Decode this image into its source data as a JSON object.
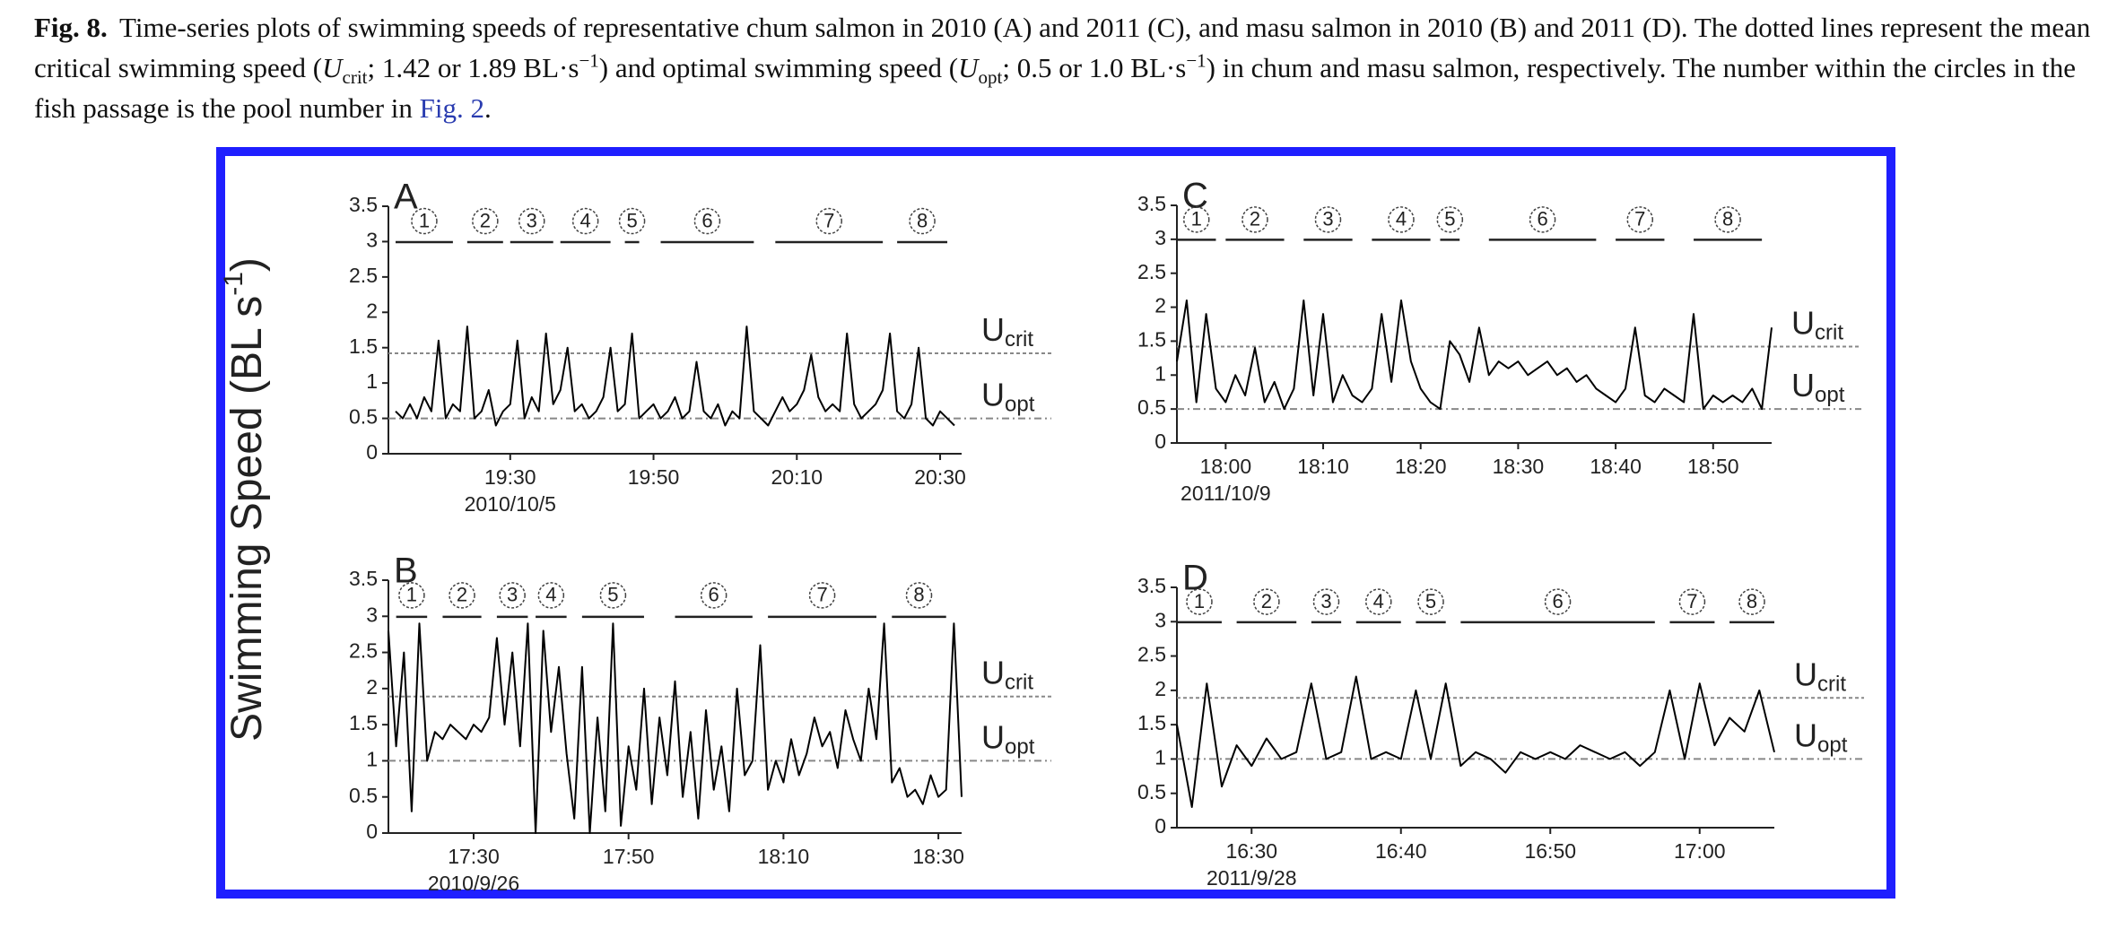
{
  "caption": {
    "label": "Fig. 8.",
    "parts": [
      "Time-series plots of swimming speeds of representative chum salmon in 2010 (A) and 2011 (C), and masu salmon in 2010 (B) and 2011 (D). The dotted lines represent the mean critical swimming speed (",
      "U",
      "crit",
      "; 1.42 or 1.89 BL·s",
      "−1",
      ") and optimal swimming speed (",
      "U",
      "opt",
      "; 0.5 or 1.0 BL·s",
      "−1",
      ") in chum and masu salmon, respectively. The number within the circles in the fish passage is the pool number in ",
      "Fig. 2",
      "."
    ]
  },
  "y_label": [
    "Swimming Speed (BL s",
    "-1",
    ")"
  ],
  "chart_data": [
    {
      "type": "line",
      "panel": "A",
      "date": "2010/10/5",
      "color": "#000000",
      "xlim": [
        "19:13",
        "20:33"
      ],
      "xticks": [
        "19:30",
        "19:50",
        "20:10",
        "20:30"
      ],
      "ylim": [
        0,
        3.5
      ],
      "yticks": [
        0,
        0.5,
        1,
        1.5,
        2,
        2.5,
        3,
        3.5
      ],
      "x": [
        "19:14",
        "19:15",
        "19:16",
        "19:17",
        "19:18",
        "19:19",
        "19:20",
        "19:21",
        "19:22",
        "19:23",
        "19:24",
        "19:25",
        "19:26",
        "19:27",
        "19:28",
        "19:29",
        "19:30",
        "19:31",
        "19:32",
        "19:33",
        "19:34",
        "19:35",
        "19:36",
        "19:37",
        "19:38",
        "19:39",
        "19:40",
        "19:41",
        "19:42",
        "19:43",
        "19:44",
        "19:45",
        "19:46",
        "19:47",
        "19:48",
        "19:49",
        "19:50",
        "19:51",
        "19:52",
        "19:53",
        "19:54",
        "19:55",
        "19:56",
        "19:57",
        "19:58",
        "19:59",
        "20:00",
        "20:01",
        "20:02",
        "20:03",
        "20:04",
        "20:05",
        "20:06",
        "20:07",
        "20:08",
        "20:09",
        "20:10",
        "20:11",
        "20:12",
        "20:13",
        "20:14",
        "20:15",
        "20:16",
        "20:17",
        "20:18",
        "20:19",
        "20:20",
        "20:21",
        "20:22",
        "20:23",
        "20:24",
        "20:25",
        "20:26",
        "20:27",
        "20:28",
        "20:29",
        "20:30",
        "20:31",
        "20:32"
      ],
      "values": [
        0.6,
        0.5,
        0.7,
        0.5,
        0.8,
        0.6,
        1.6,
        0.5,
        0.7,
        0.6,
        1.8,
        0.5,
        0.6,
        0.9,
        0.4,
        0.6,
        0.7,
        1.6,
        0.5,
        0.8,
        0.6,
        1.7,
        0.7,
        0.9,
        1.5,
        0.6,
        0.7,
        0.5,
        0.6,
        0.8,
        1.5,
        0.6,
        0.7,
        1.7,
        0.5,
        0.6,
        0.7,
        0.5,
        0.6,
        0.8,
        0.5,
        0.6,
        1.3,
        0.6,
        0.5,
        0.7,
        0.4,
        0.6,
        0.5,
        1.8,
        0.6,
        0.5,
        0.4,
        0.6,
        0.8,
        0.6,
        0.7,
        0.9,
        1.4,
        0.8,
        0.6,
        0.7,
        0.6,
        1.7,
        0.7,
        0.5,
        0.6,
        0.7,
        0.9,
        1.7,
        0.6,
        0.5,
        0.7,
        1.5,
        0.5,
        0.4,
        0.6,
        0.5,
        0.4
      ],
      "reference_lines": [
        {
          "symbol": "U",
          "subscript": "crit",
          "value": 1.42
        },
        {
          "symbol": "U",
          "subscript": "opt",
          "value": 0.5
        }
      ],
      "pools": [
        {
          "label": "1",
          "start": "19:14",
          "end": "19:22"
        },
        {
          "label": "2",
          "start": "19:24",
          "end": "19:29"
        },
        {
          "label": "3",
          "start": "19:30",
          "end": "19:36"
        },
        {
          "label": "4",
          "start": "19:37",
          "end": "19:44"
        },
        {
          "label": "5",
          "start": "19:46",
          "end": "19:48"
        },
        {
          "label": "6",
          "start": "19:51",
          "end": "20:04"
        },
        {
          "label": "7",
          "start": "20:07",
          "end": "20:22"
        },
        {
          "label": "8",
          "start": "20:24",
          "end": "20:31"
        }
      ]
    },
    {
      "type": "line",
      "panel": "B",
      "date": "2010/9/26",
      "color": "#000000",
      "xlim": [
        "17:19",
        "18:33"
      ],
      "xticks": [
        "17:30",
        "17:50",
        "18:10",
        "18:30"
      ],
      "ylim": [
        0,
        3.5
      ],
      "yticks": [
        0,
        0.5,
        1,
        1.5,
        2,
        2.5,
        3,
        3.5
      ],
      "x": [
        "17:19",
        "17:20",
        "17:21",
        "17:22",
        "17:23",
        "17:24",
        "17:25",
        "17:26",
        "17:27",
        "17:28",
        "17:29",
        "17:30",
        "17:31",
        "17:32",
        "17:33",
        "17:34",
        "17:35",
        "17:36",
        "17:37",
        "17:38",
        "17:39",
        "17:40",
        "17:41",
        "17:42",
        "17:43",
        "17:44",
        "17:45",
        "17:46",
        "17:47",
        "17:48",
        "17:49",
        "17:50",
        "17:51",
        "17:52",
        "17:53",
        "17:54",
        "17:55",
        "17:56",
        "17:57",
        "17:58",
        "17:59",
        "18:00",
        "18:01",
        "18:02",
        "18:03",
        "18:04",
        "18:05",
        "18:06",
        "18:07",
        "18:08",
        "18:09",
        "18:10",
        "18:11",
        "18:12",
        "18:13",
        "18:14",
        "18:15",
        "18:16",
        "18:17",
        "18:18",
        "18:19",
        "18:20",
        "18:21",
        "18:22",
        "18:23",
        "18:24",
        "18:25",
        "18:26",
        "18:27",
        "18:28",
        "18:29",
        "18:30",
        "18:31",
        "18:32",
        "18:33"
      ],
      "values": [
        2.8,
        1.2,
        2.5,
        0.3,
        2.9,
        1.0,
        1.4,
        1.3,
        1.5,
        1.4,
        1.3,
        1.5,
        1.4,
        1.6,
        2.7,
        1.5,
        2.5,
        1.2,
        2.9,
        0.0,
        2.8,
        1.4,
        2.3,
        1.1,
        0.2,
        2.3,
        0.0,
        1.6,
        0.3,
        2.9,
        0.1,
        1.2,
        0.6,
        2.0,
        0.4,
        1.6,
        0.8,
        2.1,
        0.5,
        1.4,
        0.2,
        1.7,
        0.6,
        1.2,
        0.3,
        2.0,
        0.8,
        1.0,
        2.6,
        0.6,
        1.0,
        0.7,
        1.3,
        0.8,
        1.1,
        1.6,
        1.2,
        1.4,
        0.9,
        1.7,
        1.3,
        1.0,
        2.0,
        1.3,
        2.9,
        0.7,
        0.9,
        0.5,
        0.6,
        0.4,
        0.8,
        0.5,
        0.6,
        2.9,
        0.5
      ],
      "reference_lines": [
        {
          "symbol": "U",
          "subscript": "crit",
          "value": 1.89
        },
        {
          "symbol": "U",
          "subscript": "opt",
          "value": 1.0
        }
      ],
      "pools": [
        {
          "label": "1",
          "start": "17:20",
          "end": "17:24"
        },
        {
          "label": "2",
          "start": "17:26",
          "end": "17:31"
        },
        {
          "label": "3",
          "start": "17:33",
          "end": "17:37"
        },
        {
          "label": "4",
          "start": "17:38",
          "end": "17:42"
        },
        {
          "label": "5",
          "start": "17:44",
          "end": "17:52"
        },
        {
          "label": "6",
          "start": "17:56",
          "end": "18:06"
        },
        {
          "label": "7",
          "start": "18:08",
          "end": "18:22"
        },
        {
          "label": "8",
          "start": "18:24",
          "end": "18:31"
        }
      ]
    },
    {
      "type": "line",
      "panel": "C",
      "date": "2011/10/9",
      "color": "#000000",
      "xlim": [
        "17:55",
        "18:56"
      ],
      "xticks": [
        "18:00",
        "18:10",
        "18:20",
        "18:30",
        "18:40",
        "18:50"
      ],
      "ylim": [
        0,
        3.5
      ],
      "yticks": [
        0,
        0.5,
        1,
        1.5,
        2,
        2.5,
        3,
        3.5
      ],
      "x": [
        "17:55",
        "17:56",
        "17:57",
        "17:58",
        "17:59",
        "18:00",
        "18:01",
        "18:02",
        "18:03",
        "18:04",
        "18:05",
        "18:06",
        "18:07",
        "18:08",
        "18:09",
        "18:10",
        "18:11",
        "18:12",
        "18:13",
        "18:14",
        "18:15",
        "18:16",
        "18:17",
        "18:18",
        "18:19",
        "18:20",
        "18:21",
        "18:22",
        "18:23",
        "18:24",
        "18:25",
        "18:26",
        "18:27",
        "18:28",
        "18:29",
        "18:30",
        "18:31",
        "18:32",
        "18:33",
        "18:34",
        "18:35",
        "18:36",
        "18:37",
        "18:38",
        "18:39",
        "18:40",
        "18:41",
        "18:42",
        "18:43",
        "18:44",
        "18:45",
        "18:46",
        "18:47",
        "18:48",
        "18:49",
        "18:50",
        "18:51",
        "18:52",
        "18:53",
        "18:54",
        "18:55",
        "18:56"
      ],
      "values": [
        1.2,
        2.1,
        0.6,
        1.9,
        0.8,
        0.6,
        1.0,
        0.7,
        1.4,
        0.6,
        0.9,
        0.5,
        0.8,
        2.1,
        0.7,
        1.9,
        0.6,
        1.0,
        0.7,
        0.6,
        0.8,
        1.9,
        0.9,
        2.1,
        1.2,
        0.8,
        0.6,
        0.5,
        1.5,
        1.3,
        0.9,
        1.7,
        1.0,
        1.2,
        1.1,
        1.2,
        1.0,
        1.1,
        1.2,
        1.0,
        1.1,
        0.9,
        1.0,
        0.8,
        0.7,
        0.6,
        0.8,
        1.7,
        0.7,
        0.6,
        0.8,
        0.7,
        0.6,
        1.9,
        0.5,
        0.7,
        0.6,
        0.7,
        0.6,
        0.8,
        0.5,
        1.7
      ],
      "reference_lines": [
        {
          "symbol": "U",
          "subscript": "crit",
          "value": 1.42
        },
        {
          "symbol": "U",
          "subscript": "opt",
          "value": 0.5
        }
      ],
      "pools": [
        {
          "label": "1",
          "start": "17:55",
          "end": "17:59"
        },
        {
          "label": "2",
          "start": "18:00",
          "end": "18:06"
        },
        {
          "label": "3",
          "start": "18:08",
          "end": "18:13"
        },
        {
          "label": "4",
          "start": "18:15",
          "end": "18:21"
        },
        {
          "label": "5",
          "start": "18:22",
          "end": "18:24"
        },
        {
          "label": "6",
          "start": "18:27",
          "end": "18:38"
        },
        {
          "label": "7",
          "start": "18:40",
          "end": "18:45"
        },
        {
          "label": "8",
          "start": "18:48",
          "end": "18:55"
        }
      ]
    },
    {
      "type": "line",
      "panel": "D",
      "date": "2011/9/28",
      "color": "#000000",
      "xlim": [
        "16:25",
        "17:05"
      ],
      "xticks": [
        "16:30",
        "16:40",
        "16:50",
        "17:00"
      ],
      "ylim": [
        0,
        3.5
      ],
      "yticks": [
        0,
        0.5,
        1,
        1.5,
        2,
        2.5,
        3,
        3.5
      ],
      "x": [
        "16:25",
        "16:26",
        "16:27",
        "16:28",
        "16:29",
        "16:30",
        "16:31",
        "16:32",
        "16:33",
        "16:34",
        "16:35",
        "16:36",
        "16:37",
        "16:38",
        "16:39",
        "16:40",
        "16:41",
        "16:42",
        "16:43",
        "16:44",
        "16:45",
        "16:46",
        "16:47",
        "16:48",
        "16:49",
        "16:50",
        "16:51",
        "16:52",
        "16:53",
        "16:54",
        "16:55",
        "16:56",
        "16:57",
        "16:58",
        "16:59",
        "17:00",
        "17:01",
        "17:02",
        "17:03",
        "17:04",
        "17:05"
      ],
      "values": [
        1.5,
        0.3,
        2.1,
        0.6,
        1.2,
        0.9,
        1.3,
        1.0,
        1.1,
        2.1,
        1.0,
        1.1,
        2.2,
        1.0,
        1.1,
        1.0,
        2.0,
        1.0,
        2.1,
        0.9,
        1.1,
        1.0,
        0.8,
        1.1,
        1.0,
        1.1,
        1.0,
        1.2,
        1.1,
        1.0,
        1.1,
        0.9,
        1.1,
        2.0,
        1.0,
        2.1,
        1.2,
        1.6,
        1.4,
        2.0,
        1.1
      ],
      "reference_lines": [
        {
          "symbol": "U",
          "subscript": "crit",
          "value": 1.89
        },
        {
          "symbol": "U",
          "subscript": "opt",
          "value": 1.0
        }
      ],
      "pools": [
        {
          "label": "1",
          "start": "16:25",
          "end": "16:28"
        },
        {
          "label": "2",
          "start": "16:29",
          "end": "16:33"
        },
        {
          "label": "3",
          "start": "16:34",
          "end": "16:36"
        },
        {
          "label": "4",
          "start": "16:37",
          "end": "16:40"
        },
        {
          "label": "5",
          "start": "16:41",
          "end": "16:43"
        },
        {
          "label": "6",
          "start": "16:44",
          "end": "16:57"
        },
        {
          "label": "7",
          "start": "16:58",
          "end": "17:01"
        },
        {
          "label": "8",
          "start": "17:02",
          "end": "17:05"
        }
      ]
    }
  ]
}
